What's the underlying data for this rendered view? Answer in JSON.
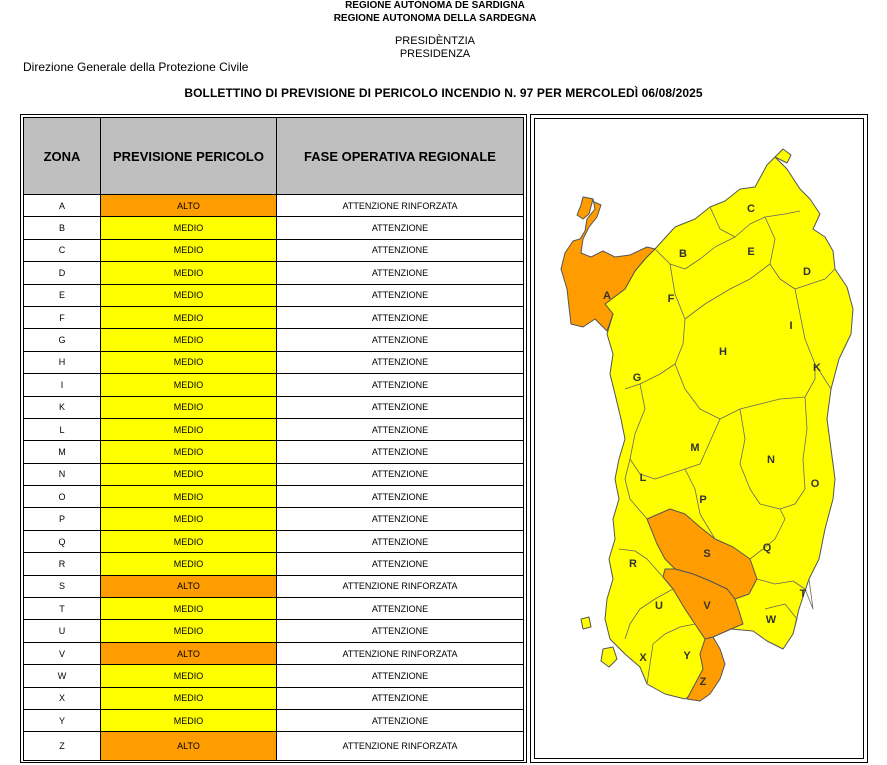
{
  "header": {
    "line1": "REGIONE AUTÒNOMA DE SARDIGNA",
    "line2": "REGIONE AUTONOMA DELLA SARDEGNA",
    "pres1": "PRESIDÈNTZIA",
    "pres2": "PRESIDENZA",
    "direzione": "Direzione Generale della Protezione Civile",
    "title": "BOLLETTINO DI PREVISIONE DI PERICOLO INCENDIO N. 97 PER MERCOLEDÌ 06/08/2025"
  },
  "table": {
    "columns": [
      "ZONA",
      "PREVISIONE PERICOLO",
      "FASE OPERATIVA REGIONALE"
    ],
    "rows": [
      {
        "zona": "A",
        "previsione": "ALTO",
        "fase": "ATTENZIONE RINFORZATA"
      },
      {
        "zona": "B",
        "previsione": "MEDIO",
        "fase": "ATTENZIONE"
      },
      {
        "zona": "C",
        "previsione": "MEDIO",
        "fase": "ATTENZIONE"
      },
      {
        "zona": "D",
        "previsione": "MEDIO",
        "fase": "ATTENZIONE"
      },
      {
        "zona": "E",
        "previsione": "MEDIO",
        "fase": "ATTENZIONE"
      },
      {
        "zona": "F",
        "previsione": "MEDIO",
        "fase": "ATTENZIONE"
      },
      {
        "zona": "G",
        "previsione": "MEDIO",
        "fase": "ATTENZIONE"
      },
      {
        "zona": "H",
        "previsione": "MEDIO",
        "fase": "ATTENZIONE"
      },
      {
        "zona": "I",
        "previsione": "MEDIO",
        "fase": "ATTENZIONE"
      },
      {
        "zona": "K",
        "previsione": "MEDIO",
        "fase": "ATTENZIONE"
      },
      {
        "zona": "L",
        "previsione": "MEDIO",
        "fase": "ATTENZIONE"
      },
      {
        "zona": "M",
        "previsione": "MEDIO",
        "fase": "ATTENZIONE"
      },
      {
        "zona": "N",
        "previsione": "MEDIO",
        "fase": "ATTENZIONE"
      },
      {
        "zona": "O",
        "previsione": "MEDIO",
        "fase": "ATTENZIONE"
      },
      {
        "zona": "P",
        "previsione": "MEDIO",
        "fase": "ATTENZIONE"
      },
      {
        "zona": "Q",
        "previsione": "MEDIO",
        "fase": "ATTENZIONE"
      },
      {
        "zona": "R",
        "previsione": "MEDIO",
        "fase": "ATTENZIONE"
      },
      {
        "zona": "S",
        "previsione": "ALTO",
        "fase": "ATTENZIONE RINFORZATA"
      },
      {
        "zona": "T",
        "previsione": "MEDIO",
        "fase": "ATTENZIONE"
      },
      {
        "zona": "U",
        "previsione": "MEDIO",
        "fase": "ATTENZIONE"
      },
      {
        "zona": "V",
        "previsione": "ALTO",
        "fase": "ATTENZIONE RINFORZATA"
      },
      {
        "zona": "W",
        "previsione": "MEDIO",
        "fase": "ATTENZIONE"
      },
      {
        "zona": "X",
        "previsione": "MEDIO",
        "fase": "ATTENZIONE"
      },
      {
        "zona": "Y",
        "previsione": "MEDIO",
        "fase": "ATTENZIONE"
      },
      {
        "zona": "Z",
        "previsione": "ALTO",
        "fase": "ATTENZIONE RINFORZATA"
      }
    ]
  },
  "colors": {
    "alto": "#ff9c00",
    "medio": "#ffff00",
    "header_bg": "#bfbfbf"
  },
  "map": {
    "labels": [
      "A",
      "B",
      "C",
      "D",
      "E",
      "F",
      "G",
      "H",
      "I",
      "K",
      "L",
      "M",
      "N",
      "O",
      "P",
      "Q",
      "R",
      "S",
      "T",
      "U",
      "V",
      "W",
      "X",
      "Y",
      "Z"
    ]
  }
}
